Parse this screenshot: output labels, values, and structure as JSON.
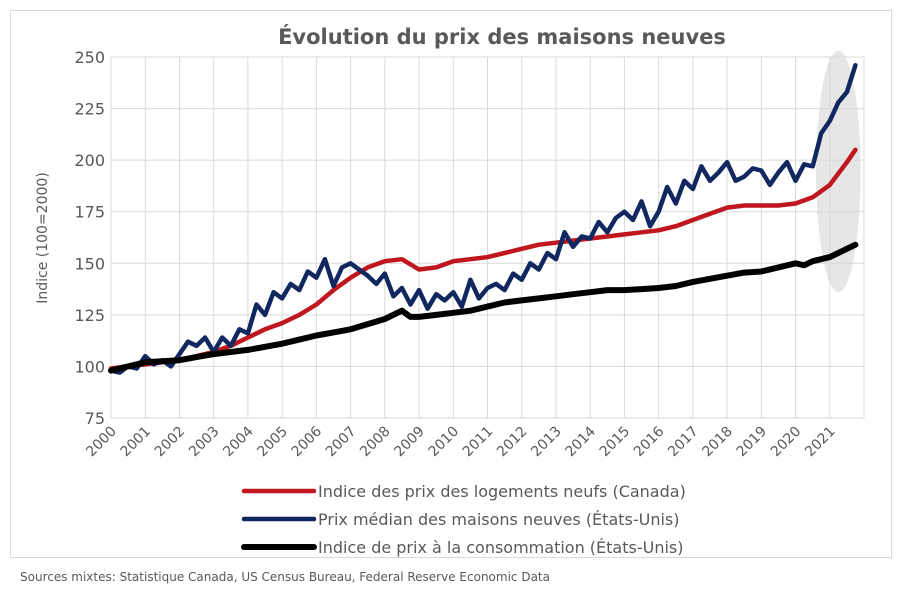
{
  "source_note": "Sources mixtes: Statistique Canada, US Census Bureau, Federal Reserve Economic Data",
  "colors": {
    "canada": "#c0161e",
    "us_median": "#10275f",
    "cpi": "#000000",
    "grid": "#d9d9d9",
    "text": "#595959",
    "highlight": "#e6e6e6"
  },
  "chart_data": {
    "type": "line",
    "title": "Évolution du prix des maisons neuves",
    "ylabel": "Indice (100=2000)",
    "xlabel": "",
    "xlim": [
      2000,
      2022
    ],
    "ylim": [
      75,
      250
    ],
    "yticks": [
      75,
      100,
      125,
      150,
      175,
      200,
      225,
      250
    ],
    "xticks": [
      "2000",
      "2001",
      "2002",
      "2003",
      "2004",
      "2005",
      "2006",
      "2007",
      "2008",
      "2009",
      "2010",
      "2011",
      "2012",
      "2013",
      "2014",
      "2015",
      "2016",
      "2017",
      "2018",
      "2019",
      "2020",
      "2021"
    ],
    "grid": true,
    "legend_position": "bottom",
    "highlight_region": {
      "x_start": 2020.6,
      "x_end": 2021.9,
      "y_start": 136,
      "y_end": 253
    },
    "series": [
      {
        "name": "Indice des prix des logements neufs (Canada)",
        "color_key": "canada",
        "x": [
          2000,
          2000.5,
          2001,
          2001.5,
          2002,
          2002.5,
          2003,
          2003.5,
          2004,
          2004.5,
          2005,
          2005.5,
          2006,
          2006.5,
          2007,
          2007.5,
          2008,
          2008.5,
          2009,
          2009.5,
          2010,
          2010.5,
          2011,
          2011.5,
          2012,
          2012.5,
          2013,
          2013.5,
          2014,
          2014.5,
          2015,
          2015.5,
          2016,
          2016.5,
          2017,
          2017.5,
          2018,
          2018.5,
          2019,
          2019.5,
          2020,
          2020.5,
          2021,
          2021.5,
          2021.75
        ],
        "values": [
          99,
          100,
          101,
          102,
          103,
          105,
          107,
          110,
          114,
          118,
          121,
          125,
          130,
          137,
          143,
          148,
          151,
          152,
          147,
          148,
          151,
          152,
          153,
          155,
          157,
          159,
          160,
          161,
          162,
          163,
          164,
          165,
          166,
          168,
          171,
          174,
          177,
          178,
          178,
          178,
          179,
          182,
          188,
          199,
          205
        ]
      },
      {
        "name": "Prix médian des maisons neuves (États-Unis)",
        "color_key": "us_median",
        "x": [
          2000,
          2000.25,
          2000.5,
          2000.75,
          2001,
          2001.25,
          2001.5,
          2001.75,
          2002,
          2002.25,
          2002.5,
          2002.75,
          2003,
          2003.25,
          2003.5,
          2003.75,
          2004,
          2004.25,
          2004.5,
          2004.75,
          2005,
          2005.25,
          2005.5,
          2005.75,
          2006,
          2006.25,
          2006.5,
          2006.75,
          2007,
          2007.25,
          2007.5,
          2007.75,
          2008,
          2008.25,
          2008.5,
          2008.75,
          2009,
          2009.25,
          2009.5,
          2009.75,
          2010,
          2010.25,
          2010.5,
          2010.75,
          2011,
          2011.25,
          2011.5,
          2011.75,
          2012,
          2012.25,
          2012.5,
          2012.75,
          2013,
          2013.25,
          2013.5,
          2013.75,
          2014,
          2014.25,
          2014.5,
          2014.75,
          2015,
          2015.25,
          2015.5,
          2015.75,
          2016,
          2016.25,
          2016.5,
          2016.75,
          2017,
          2017.25,
          2017.5,
          2017.75,
          2018,
          2018.25,
          2018.5,
          2018.75,
          2019,
          2019.25,
          2019.5,
          2019.75,
          2020,
          2020.25,
          2020.5,
          2020.75,
          2021,
          2021.25,
          2021.5,
          2021.75
        ],
        "values": [
          98,
          97,
          100,
          99,
          105,
          101,
          103,
          100,
          106,
          112,
          110,
          114,
          107,
          114,
          110,
          118,
          116,
          130,
          125,
          136,
          133,
          140,
          137,
          146,
          143,
          152,
          139,
          148,
          150,
          147,
          144,
          140,
          145,
          134,
          138,
          130,
          137,
          128,
          135,
          132,
          136,
          129,
          142,
          133,
          138,
          140,
          137,
          145,
          142,
          150,
          147,
          155,
          152,
          165,
          158,
          163,
          162,
          170,
          165,
          172,
          175,
          171,
          180,
          168,
          175,
          187,
          179,
          190,
          186,
          197,
          190,
          194,
          199,
          190,
          192,
          196,
          195,
          188,
          194,
          199,
          190,
          198,
          197,
          213,
          219,
          228,
          233,
          246
        ]
      },
      {
        "name": "Indice de prix à la consommation (États-Unis)",
        "color_key": "cpi",
        "x": [
          2000,
          2000.5,
          2001,
          2001.5,
          2002,
          2002.5,
          2003,
          2003.5,
          2004,
          2004.5,
          2005,
          2005.5,
          2006,
          2006.5,
          2007,
          2007.5,
          2008,
          2008.5,
          2008.75,
          2009,
          2009.5,
          2010,
          2010.5,
          2011,
          2011.5,
          2012,
          2012.5,
          2013,
          2013.5,
          2014,
          2014.5,
          2015,
          2015.5,
          2016,
          2016.5,
          2017,
          2017.5,
          2018,
          2018.5,
          2019,
          2019.5,
          2020,
          2020.25,
          2020.5,
          2021,
          2021.5,
          2021.75
        ],
        "values": [
          98,
          100,
          102,
          102.5,
          103,
          104.5,
          106,
          107,
          108,
          109.5,
          111,
          113,
          115,
          116.5,
          118,
          120.5,
          123,
          127,
          124,
          124,
          125,
          126,
          127,
          129,
          131,
          132,
          133,
          134,
          135,
          136,
          137,
          137,
          137.5,
          138,
          139,
          141,
          142.5,
          144,
          145.5,
          146,
          148,
          150,
          149,
          151,
          153,
          157,
          159
        ]
      }
    ]
  }
}
